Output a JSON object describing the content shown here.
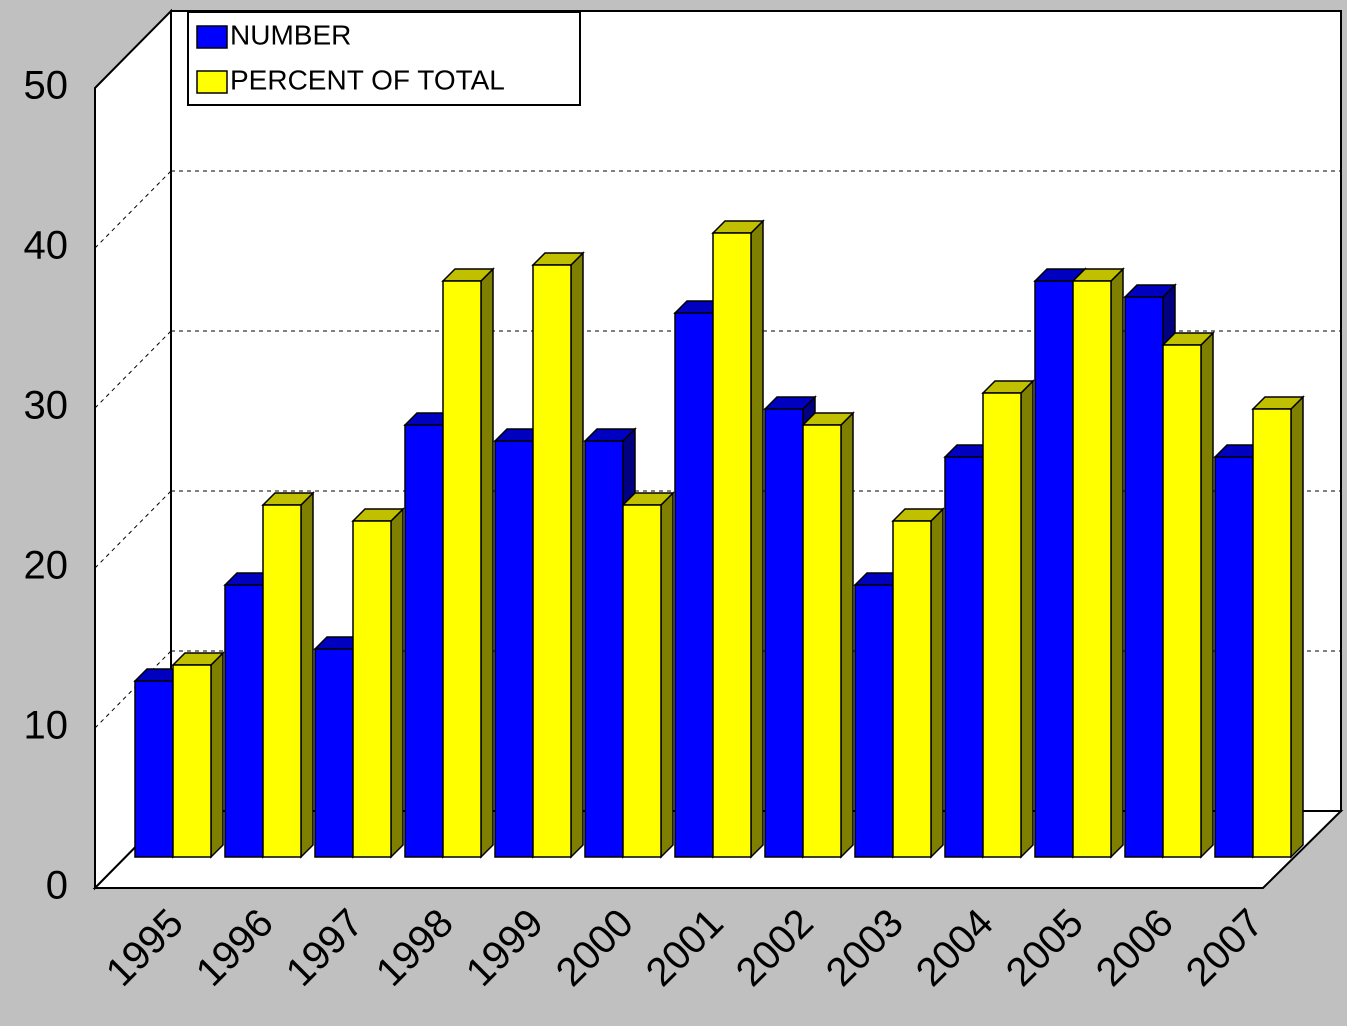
{
  "chart_data": {
    "type": "bar3d",
    "categories": [
      "1995",
      "1996",
      "1997",
      "1998",
      "1999",
      "2000",
      "2001",
      "2002",
      "2003",
      "2004",
      "2005",
      "2006",
      "2007"
    ],
    "series": [
      {
        "name": "NUMBER",
        "color": "#0000ff",
        "side": "#000080",
        "values": [
          11,
          17,
          13,
          27,
          26,
          26,
          34,
          28,
          17,
          25,
          36,
          35,
          25
        ]
      },
      {
        "name": "PERCENT OF TOTAL",
        "color": "#ffff00",
        "side": "#808000",
        "values": [
          12,
          22,
          21,
          36,
          37,
          22,
          39,
          27,
          21,
          29,
          36,
          32,
          28
        ]
      }
    ],
    "ylim": [
      0,
      50
    ],
    "yticks": [
      0,
      10,
      20,
      30,
      40,
      50
    ],
    "grid": true
  }
}
